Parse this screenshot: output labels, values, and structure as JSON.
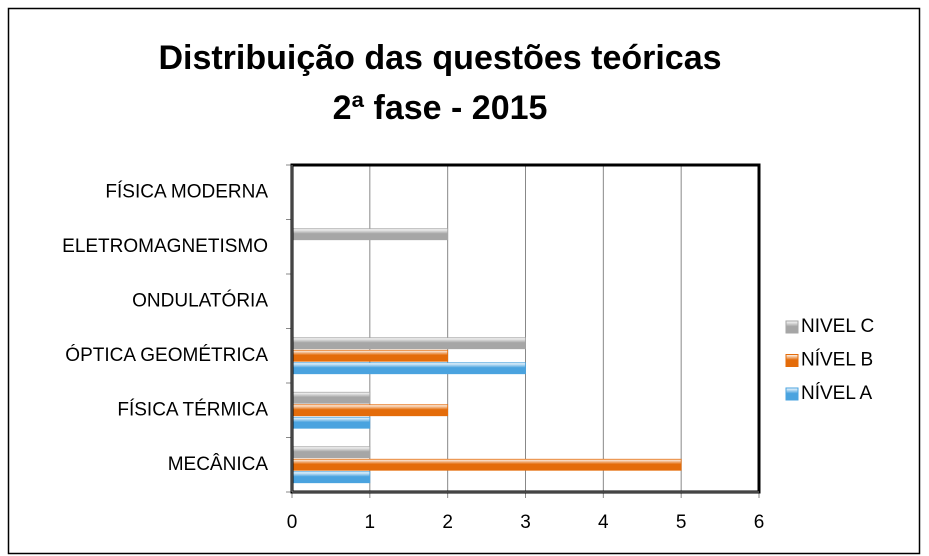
{
  "chart_data": {
    "type": "bar",
    "orientation": "horizontal",
    "title": [
      "Distribuição das questões teóricas",
      "2ª fase - 2015"
    ],
    "categories": [
      "MECÂNICA",
      "FÍSICA TÉRMICA",
      "ÓPTICA GEOMÉTRICA",
      "ONDULATÓRIA",
      "ELETROMAGNETISMO",
      "FÍSICA MODERNA"
    ],
    "series": [
      {
        "name": "NÍVEL A",
        "color": "#4aa3df",
        "values": [
          1,
          1,
          3,
          0,
          0,
          0
        ]
      },
      {
        "name": "NÍVEL B",
        "color": "#e46c0a",
        "values": [
          5,
          2,
          2,
          0,
          0,
          0
        ]
      },
      {
        "name": "NIVEL C",
        "color": "#a6a6a6",
        "values": [
          1,
          1,
          3,
          0,
          2,
          0
        ]
      }
    ],
    "xlim": [
      0,
      6
    ],
    "xticks": [
      0,
      1,
      2,
      3,
      4,
      5,
      6
    ],
    "grid": true,
    "legend": "right"
  }
}
